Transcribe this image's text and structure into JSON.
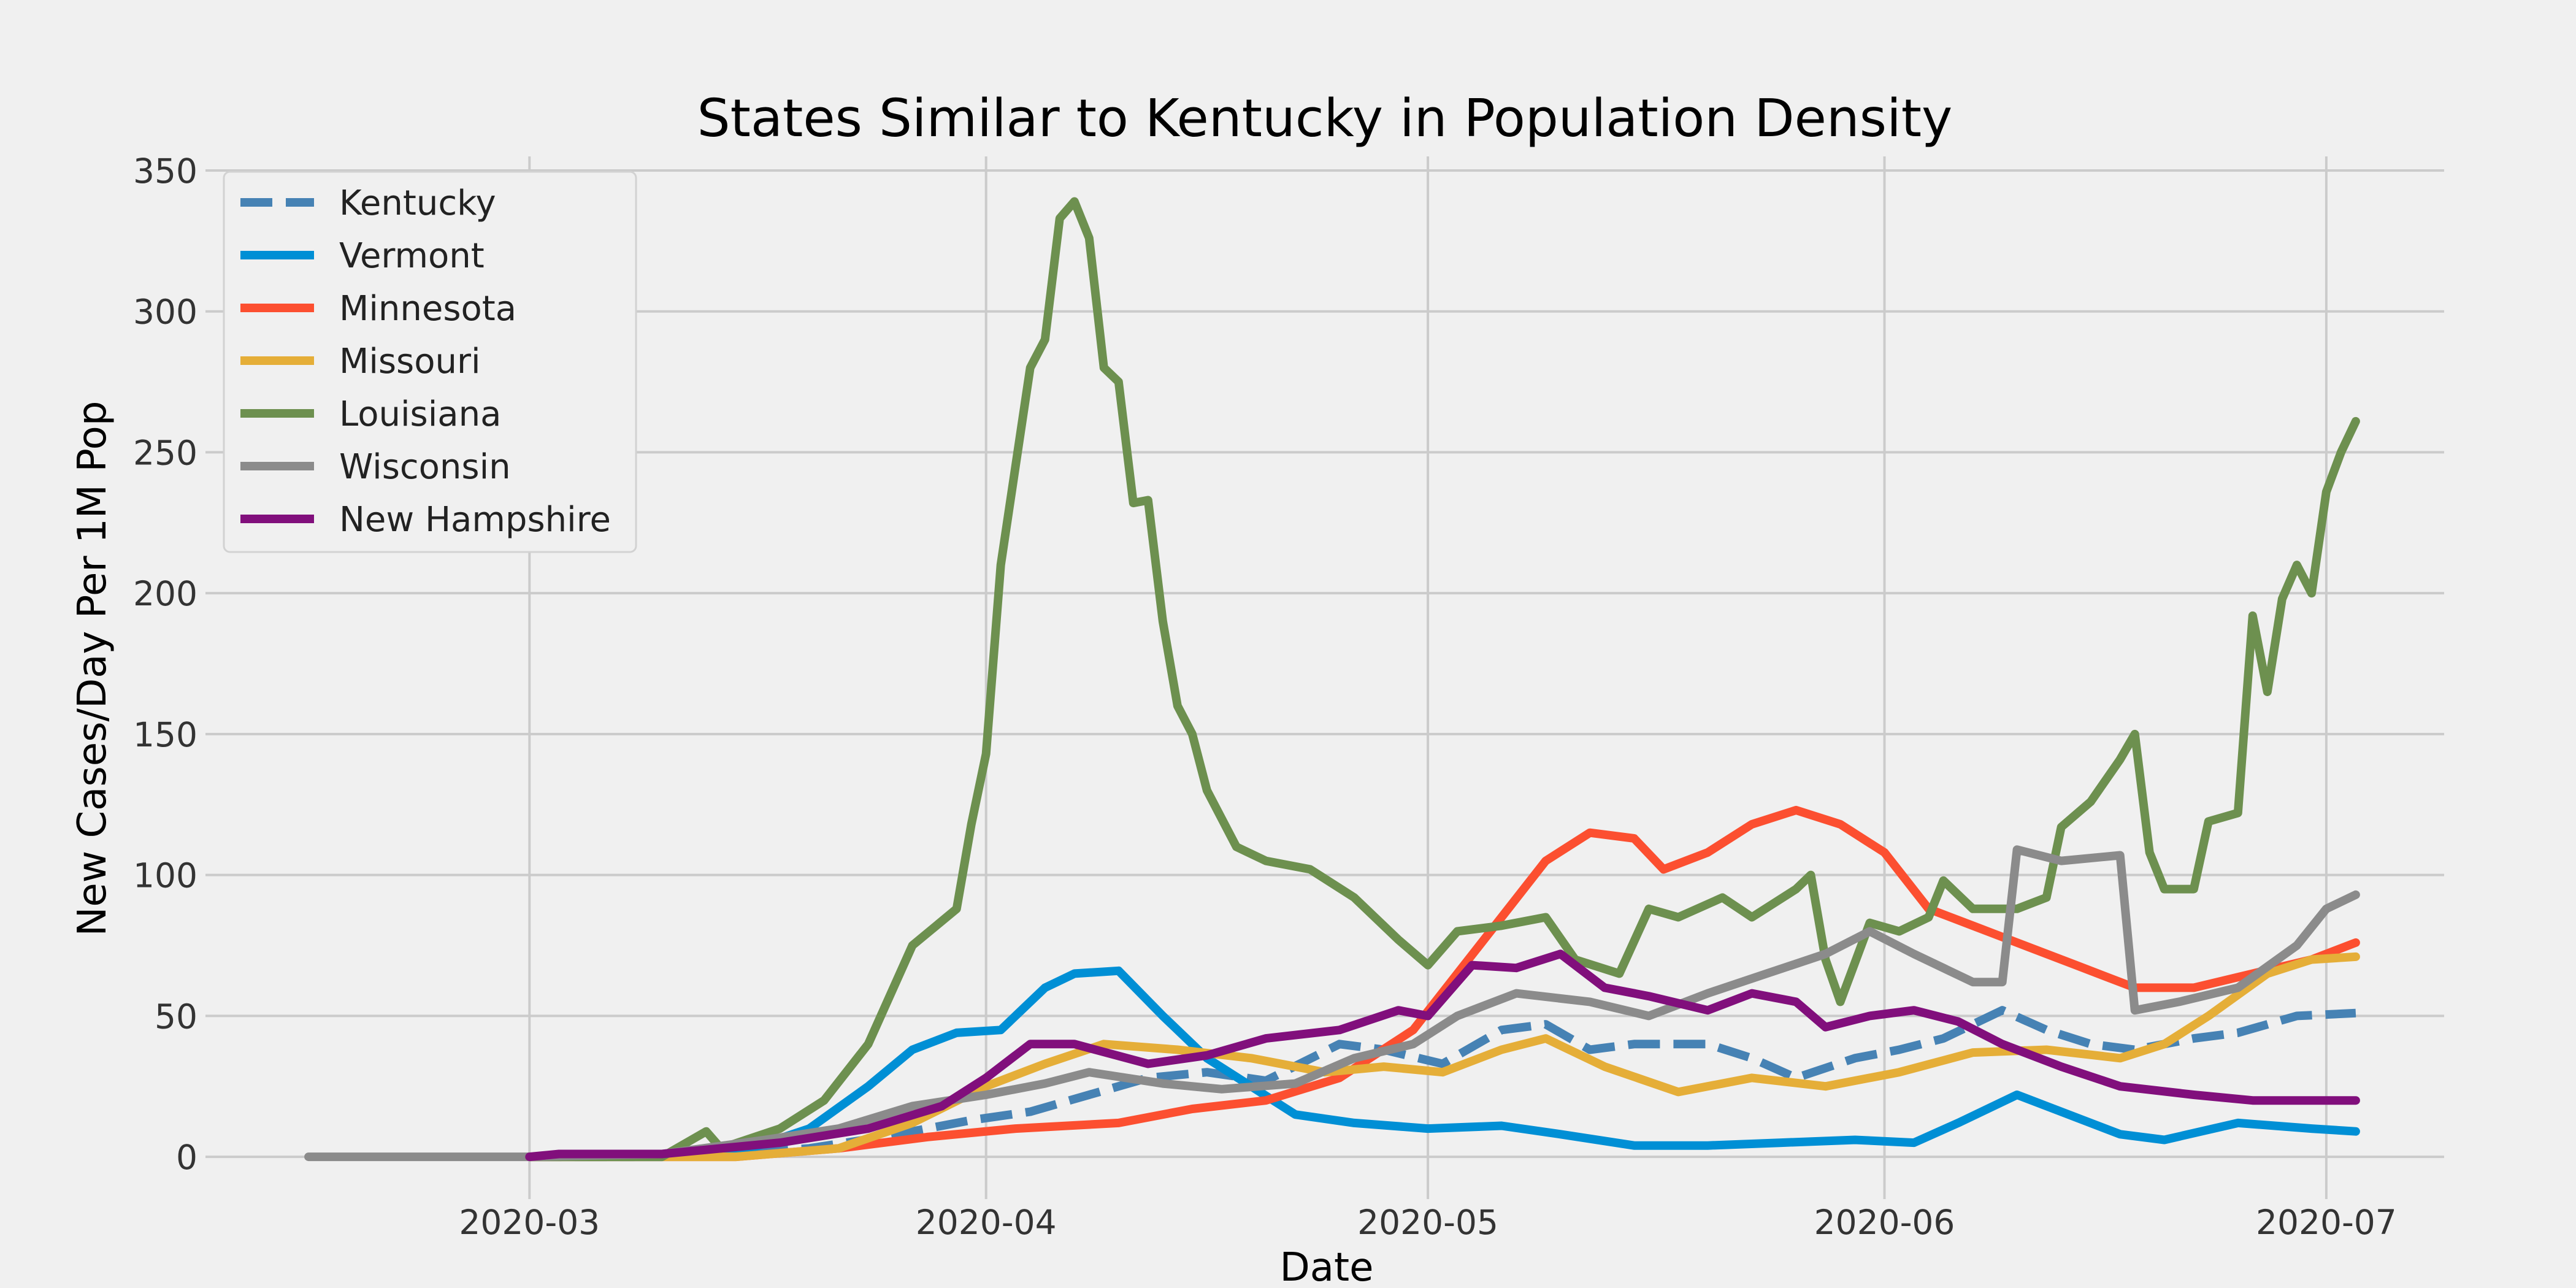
{
  "chart_data": {
    "type": "line",
    "title": "States Similar to Kentucky in Population Density",
    "xlabel": "Date",
    "ylabel": "New Cases/Day Per 1M Pop",
    "x_range": [
      "2020-02-08",
      "2020-07-09"
    ],
    "ylim": [
      -15,
      355
    ],
    "x_ticks": [
      "2020-03-01",
      "2020-04-01",
      "2020-05-01",
      "2020-06-01",
      "2020-07-01"
    ],
    "x_tick_labels": [
      "2020-03",
      "2020-04",
      "2020-05",
      "2020-06",
      "2020-07"
    ],
    "y_ticks": [
      0,
      50,
      100,
      150,
      200,
      250,
      300,
      350
    ],
    "y_tick_labels": [
      "0",
      "50",
      "100",
      "150",
      "200",
      "250",
      "300",
      "350"
    ],
    "grid": true,
    "legend_position": "top-left",
    "colors": {
      "background": "#f0f0f0",
      "grid": "#cbcbcb"
    },
    "series": [
      {
        "name": "Kentucky",
        "color": "#4682b4",
        "dashed": true,
        "points": [
          [
            "2020-03-01",
            0
          ],
          [
            "2020-03-08",
            0
          ],
          [
            "2020-03-15",
            1
          ],
          [
            "2020-03-20",
            3
          ],
          [
            "2020-03-25",
            7
          ],
          [
            "2020-03-31",
            13
          ],
          [
            "2020-04-04",
            16
          ],
          [
            "2020-04-08",
            22
          ],
          [
            "2020-04-12",
            28
          ],
          [
            "2020-04-16",
            30
          ],
          [
            "2020-04-20",
            27
          ],
          [
            "2020-04-25",
            40
          ],
          [
            "2020-04-28",
            38
          ],
          [
            "2020-05-02",
            33
          ],
          [
            "2020-05-06",
            45
          ],
          [
            "2020-05-09",
            47
          ],
          [
            "2020-05-12",
            38
          ],
          [
            "2020-05-15",
            40
          ],
          [
            "2020-05-20",
            40
          ],
          [
            "2020-05-23",
            35
          ],
          [
            "2020-05-26",
            28
          ],
          [
            "2020-05-30",
            35
          ],
          [
            "2020-06-02",
            38
          ],
          [
            "2020-06-05",
            42
          ],
          [
            "2020-06-09",
            52
          ],
          [
            "2020-06-12",
            45
          ],
          [
            "2020-06-15",
            40
          ],
          [
            "2020-06-18",
            38
          ],
          [
            "2020-06-22",
            42
          ],
          [
            "2020-06-25",
            44
          ],
          [
            "2020-06-29",
            50
          ],
          [
            "2020-07-03",
            51
          ]
        ]
      },
      {
        "name": "Vermont",
        "color": "#008fd5",
        "dashed": false,
        "points": [
          [
            "2020-03-01",
            0
          ],
          [
            "2020-03-10",
            0
          ],
          [
            "2020-03-16",
            3
          ],
          [
            "2020-03-20",
            10
          ],
          [
            "2020-03-24",
            25
          ],
          [
            "2020-03-27",
            38
          ],
          [
            "2020-03-30",
            44
          ],
          [
            "2020-04-02",
            45
          ],
          [
            "2020-04-05",
            60
          ],
          [
            "2020-04-07",
            65
          ],
          [
            "2020-04-10",
            66
          ],
          [
            "2020-04-13",
            50
          ],
          [
            "2020-04-16",
            35
          ],
          [
            "2020-04-19",
            25
          ],
          [
            "2020-04-22",
            15
          ],
          [
            "2020-04-26",
            12
          ],
          [
            "2020-05-01",
            10
          ],
          [
            "2020-05-06",
            11
          ],
          [
            "2020-05-10",
            8
          ],
          [
            "2020-05-15",
            4
          ],
          [
            "2020-05-20",
            4
          ],
          [
            "2020-05-25",
            5
          ],
          [
            "2020-05-30",
            6
          ],
          [
            "2020-06-03",
            5
          ],
          [
            "2020-06-06",
            12
          ],
          [
            "2020-06-10",
            22
          ],
          [
            "2020-06-12",
            18
          ],
          [
            "2020-06-17",
            8
          ],
          [
            "2020-06-20",
            6
          ],
          [
            "2020-06-25",
            12
          ],
          [
            "2020-06-30",
            10
          ],
          [
            "2020-07-03",
            9
          ]
        ]
      },
      {
        "name": "Minnesota",
        "color": "#fc4f30",
        "dashed": false,
        "points": [
          [
            "2020-03-01",
            0
          ],
          [
            "2020-03-15",
            0
          ],
          [
            "2020-03-22",
            3
          ],
          [
            "2020-03-28",
            7
          ],
          [
            "2020-04-03",
            10
          ],
          [
            "2020-04-10",
            12
          ],
          [
            "2020-04-15",
            17
          ],
          [
            "2020-04-20",
            20
          ],
          [
            "2020-04-25",
            28
          ],
          [
            "2020-04-30",
            45
          ],
          [
            "2020-05-03",
            65
          ],
          [
            "2020-05-06",
            85
          ],
          [
            "2020-05-09",
            105
          ],
          [
            "2020-05-12",
            115
          ],
          [
            "2020-05-15",
            113
          ],
          [
            "2020-05-17",
            102
          ],
          [
            "2020-05-20",
            108
          ],
          [
            "2020-05-23",
            118
          ],
          [
            "2020-05-26",
            123
          ],
          [
            "2020-05-29",
            118
          ],
          [
            "2020-06-01",
            108
          ],
          [
            "2020-06-04",
            88
          ],
          [
            "2020-06-07",
            82
          ],
          [
            "2020-06-10",
            76
          ],
          [
            "2020-06-14",
            68
          ],
          [
            "2020-06-18",
            60
          ],
          [
            "2020-06-22",
            60
          ],
          [
            "2020-06-26",
            65
          ],
          [
            "2020-06-30",
            70
          ],
          [
            "2020-07-03",
            76
          ]
        ]
      },
      {
        "name": "Missouri",
        "color": "#e5ae38",
        "dashed": false,
        "points": [
          [
            "2020-03-01",
            0
          ],
          [
            "2020-03-15",
            0
          ],
          [
            "2020-03-22",
            3
          ],
          [
            "2020-03-27",
            12
          ],
          [
            "2020-04-01",
            25
          ],
          [
            "2020-04-05",
            33
          ],
          [
            "2020-04-09",
            40
          ],
          [
            "2020-04-14",
            38
          ],
          [
            "2020-04-19",
            35
          ],
          [
            "2020-04-24",
            30
          ],
          [
            "2020-04-28",
            32
          ],
          [
            "2020-05-02",
            30
          ],
          [
            "2020-05-06",
            38
          ],
          [
            "2020-05-09",
            42
          ],
          [
            "2020-05-13",
            32
          ],
          [
            "2020-05-18",
            23
          ],
          [
            "2020-05-23",
            28
          ],
          [
            "2020-05-28",
            25
          ],
          [
            "2020-06-02",
            30
          ],
          [
            "2020-06-07",
            37
          ],
          [
            "2020-06-12",
            38
          ],
          [
            "2020-06-17",
            35
          ],
          [
            "2020-06-20",
            40
          ],
          [
            "2020-06-23",
            50
          ],
          [
            "2020-06-27",
            65
          ],
          [
            "2020-06-30",
            70
          ],
          [
            "2020-07-03",
            71
          ]
        ]
      },
      {
        "name": "Louisiana",
        "color": "#6d904f",
        "dashed": false,
        "points": [
          [
            "2020-03-01",
            0
          ],
          [
            "2020-03-10",
            0
          ],
          [
            "2020-03-13",
            9
          ],
          [
            "2020-03-14",
            3
          ],
          [
            "2020-03-18",
            10
          ],
          [
            "2020-03-21",
            20
          ],
          [
            "2020-03-24",
            40
          ],
          [
            "2020-03-27",
            75
          ],
          [
            "2020-03-30",
            88
          ],
          [
            "2020-03-31",
            118
          ],
          [
            "2020-04-01",
            143
          ],
          [
            "2020-04-02",
            210
          ],
          [
            "2020-04-04",
            280
          ],
          [
            "2020-04-05",
            290
          ],
          [
            "2020-04-06",
            333
          ],
          [
            "2020-04-07",
            339
          ],
          [
            "2020-04-08",
            326
          ],
          [
            "2020-04-09",
            280
          ],
          [
            "2020-04-10",
            275
          ],
          [
            "2020-04-11",
            232
          ],
          [
            "2020-04-12",
            233
          ],
          [
            "2020-04-13",
            190
          ],
          [
            "2020-04-14",
            160
          ],
          [
            "2020-04-15",
            150
          ],
          [
            "2020-04-16",
            130
          ],
          [
            "2020-04-18",
            110
          ],
          [
            "2020-04-20",
            105
          ],
          [
            "2020-04-23",
            102
          ],
          [
            "2020-04-26",
            92
          ],
          [
            "2020-04-29",
            77
          ],
          [
            "2020-05-01",
            68
          ],
          [
            "2020-05-03",
            80
          ],
          [
            "2020-05-06",
            82
          ],
          [
            "2020-05-09",
            85
          ],
          [
            "2020-05-11",
            70
          ],
          [
            "2020-05-14",
            65
          ],
          [
            "2020-05-16",
            88
          ],
          [
            "2020-05-18",
            85
          ],
          [
            "2020-05-21",
            92
          ],
          [
            "2020-05-23",
            85
          ],
          [
            "2020-05-26",
            95
          ],
          [
            "2020-05-27",
            100
          ],
          [
            "2020-05-28",
            70
          ],
          [
            "2020-05-29",
            55
          ],
          [
            "2020-05-31",
            83
          ],
          [
            "2020-06-02",
            80
          ],
          [
            "2020-06-04",
            85
          ],
          [
            "2020-06-05",
            98
          ],
          [
            "2020-06-07",
            88
          ],
          [
            "2020-06-10",
            88
          ],
          [
            "2020-06-12",
            92
          ],
          [
            "2020-06-13",
            117
          ],
          [
            "2020-06-15",
            126
          ],
          [
            "2020-06-17",
            141
          ],
          [
            "2020-06-18",
            150
          ],
          [
            "2020-06-19",
            108
          ],
          [
            "2020-06-20",
            95
          ],
          [
            "2020-06-22",
            95
          ],
          [
            "2020-06-23",
            119
          ],
          [
            "2020-06-25",
            122
          ],
          [
            "2020-06-26",
            192
          ],
          [
            "2020-06-27",
            165
          ],
          [
            "2020-06-28",
            198
          ],
          [
            "2020-06-29",
            210
          ],
          [
            "2020-06-30",
            200
          ],
          [
            "2020-07-01",
            236
          ],
          [
            "2020-07-02",
            250
          ],
          [
            "2020-07-03",
            261
          ]
        ]
      },
      {
        "name": "Wisconsin",
        "color": "#8b8b8b",
        "dashed": false,
        "points": [
          [
            "2020-02-15",
            0
          ],
          [
            "2020-03-01",
            0
          ],
          [
            "2020-03-10",
            1
          ],
          [
            "2020-03-17",
            6
          ],
          [
            "2020-03-22",
            10
          ],
          [
            "2020-03-27",
            18
          ],
          [
            "2020-04-01",
            22
          ],
          [
            "2020-04-05",
            26
          ],
          [
            "2020-04-08",
            30
          ],
          [
            "2020-04-13",
            26
          ],
          [
            "2020-04-17",
            24
          ],
          [
            "2020-04-22",
            26
          ],
          [
            "2020-04-26",
            35
          ],
          [
            "2020-04-30",
            40
          ],
          [
            "2020-05-03",
            50
          ],
          [
            "2020-05-07",
            58
          ],
          [
            "2020-05-12",
            55
          ],
          [
            "2020-05-16",
            50
          ],
          [
            "2020-05-20",
            58
          ],
          [
            "2020-05-24",
            65
          ],
          [
            "2020-05-28",
            72
          ],
          [
            "2020-05-31",
            80
          ],
          [
            "2020-06-03",
            72
          ],
          [
            "2020-06-07",
            62
          ],
          [
            "2020-06-09",
            62
          ],
          [
            "2020-06-10",
            109
          ],
          [
            "2020-06-13",
            105
          ],
          [
            "2020-06-17",
            107
          ],
          [
            "2020-06-18",
            52
          ],
          [
            "2020-06-21",
            55
          ],
          [
            "2020-06-25",
            60
          ],
          [
            "2020-06-29",
            75
          ],
          [
            "2020-07-01",
            88
          ],
          [
            "2020-07-03",
            93
          ]
        ]
      },
      {
        "name": "New Hampshire",
        "color": "#810f7c",
        "dashed": false,
        "points": [
          [
            "2020-03-01",
            0
          ],
          [
            "2020-03-03",
            1
          ],
          [
            "2020-03-06",
            1
          ],
          [
            "2020-03-10",
            1
          ],
          [
            "2020-03-18",
            5
          ],
          [
            "2020-03-24",
            10
          ],
          [
            "2020-03-29",
            18
          ],
          [
            "2020-04-01",
            28
          ],
          [
            "2020-04-04",
            40
          ],
          [
            "2020-04-07",
            40
          ],
          [
            "2020-04-12",
            33
          ],
          [
            "2020-04-16",
            36
          ],
          [
            "2020-04-20",
            42
          ],
          [
            "2020-04-25",
            45
          ],
          [
            "2020-04-29",
            52
          ],
          [
            "2020-05-01",
            50
          ],
          [
            "2020-05-04",
            68
          ],
          [
            "2020-05-07",
            67
          ],
          [
            "2020-05-10",
            72
          ],
          [
            "2020-05-13",
            60
          ],
          [
            "2020-05-16",
            57
          ],
          [
            "2020-05-20",
            52
          ],
          [
            "2020-05-23",
            58
          ],
          [
            "2020-05-26",
            55
          ],
          [
            "2020-05-28",
            46
          ],
          [
            "2020-05-31",
            50
          ],
          [
            "2020-06-03",
            52
          ],
          [
            "2020-06-06",
            48
          ],
          [
            "2020-06-09",
            40
          ],
          [
            "2020-06-13",
            32
          ],
          [
            "2020-06-17",
            25
          ],
          [
            "2020-06-22",
            22
          ],
          [
            "2020-06-26",
            20
          ],
          [
            "2020-06-30",
            20
          ],
          [
            "2020-07-03",
            20
          ]
        ]
      }
    ]
  }
}
